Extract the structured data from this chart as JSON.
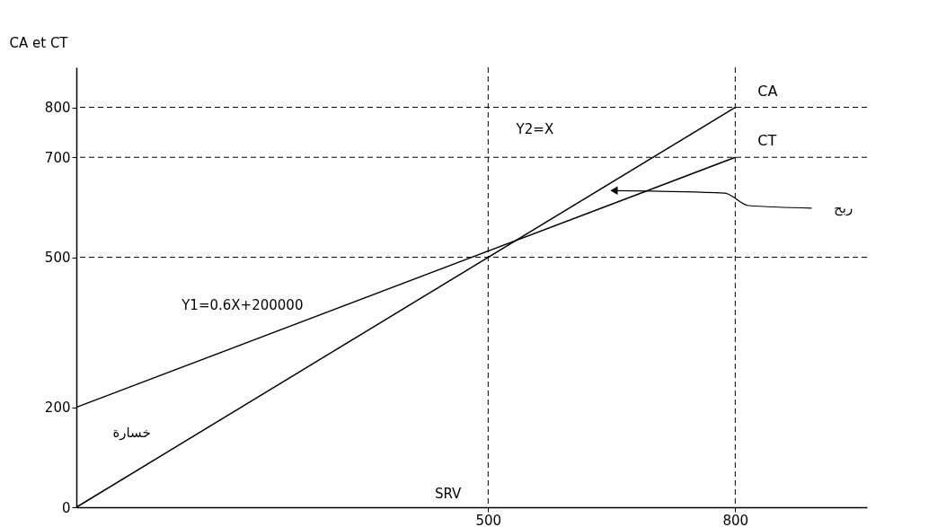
{
  "chart_data": {
    "type": "line",
    "ylabel": "CA et CT",
    "x": [
      0,
      800
    ],
    "series": [
      {
        "name": "CA",
        "color": "#000000",
        "values": [
          0,
          800
        ]
      },
      {
        "name": "CT",
        "color": "#000000",
        "values": [
          200,
          700
        ]
      }
    ],
    "xlim": [
      0,
      960
    ],
    "ylim": [
      0,
      880
    ],
    "xticks": [
      500,
      800
    ],
    "yticks": [
      0,
      200,
      500,
      700,
      800
    ],
    "grid": false,
    "legend": false,
    "marker": "none",
    "line_style": "solid",
    "ref_lines": [
      {
        "axis": "y",
        "value": 800,
        "line_style": "dashed",
        "color": "#000000"
      },
      {
        "axis": "y",
        "value": 700,
        "line_style": "dashed",
        "color": "#000000"
      },
      {
        "axis": "y",
        "value": 500,
        "line_style": "dashed",
        "color": "#000000"
      },
      {
        "axis": "x",
        "value": 500,
        "line_style": "dashed",
        "color": "#000000"
      },
      {
        "axis": "x",
        "value": 800,
        "line_style": "dashed",
        "color": "#000000"
      }
    ],
    "annotations": [
      "Y2=X",
      "Y1=0.6X+200000",
      "ربح",
      "خسارة",
      "SRV"
    ]
  }
}
